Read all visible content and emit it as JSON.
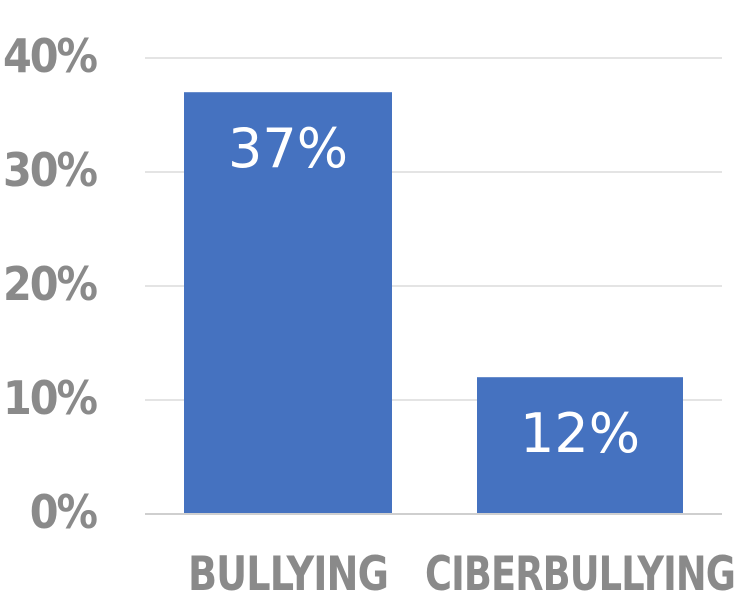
{
  "chart_data": {
    "type": "bar",
    "categories": [
      "BULLYING",
      "CIBERBULLYING"
    ],
    "values": [
      37,
      12
    ],
    "data_labels": [
      "37%",
      "12%"
    ],
    "yticks": [
      "0%",
      "10%",
      "20%",
      "30%",
      "40%"
    ],
    "ytick_values": [
      0,
      10,
      20,
      30,
      40
    ],
    "ylim": [
      0,
      40
    ],
    "grid": true,
    "legend": "none",
    "bar_color": "#4572c0"
  }
}
